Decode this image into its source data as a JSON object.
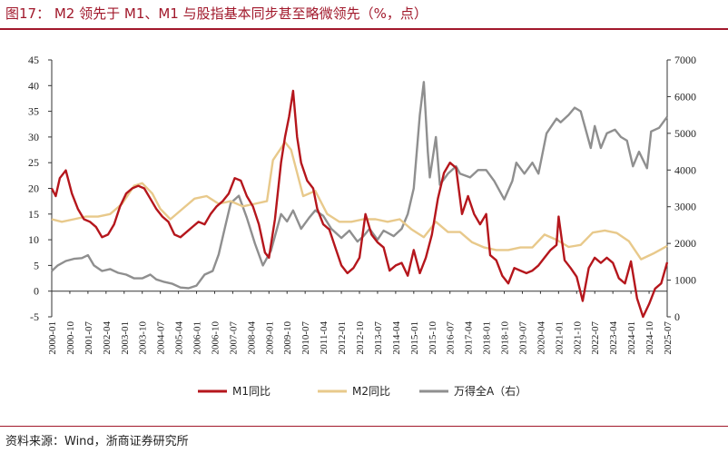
{
  "title": "图17： M2 领先于 M1、M1 与股指基本同步甚至略微领先（%，点）",
  "source": "资料来源：Wind，浙商证券研究所",
  "chart_data": {
    "type": "line",
    "x_ticks": [
      "2000-01",
      "2000-10",
      "2001-07",
      "2002-04",
      "2003-01",
      "2003-10",
      "2004-07",
      "2005-04",
      "2006-01",
      "2006-10",
      "2007-07",
      "2008-04",
      "2009-01",
      "2009-10",
      "2010-07",
      "2011-04",
      "2012-01",
      "2012-10",
      "2013-07",
      "2014-04",
      "2015-01",
      "2015-10",
      "2016-07",
      "2017-04",
      "2018-01",
      "2018-10",
      "2019-07",
      "2020-04",
      "2021-01",
      "2021-10",
      "2022-07",
      "2023-04",
      "2024-01",
      "2024-10",
      "2025-07"
    ],
    "x_range": [
      "2000-01",
      "2025-07"
    ],
    "y_left": {
      "ticks": [
        "45",
        "40",
        "35",
        "30",
        "25",
        "20",
        "15",
        "10",
        "5",
        "0",
        "-5"
      ],
      "ylim": [
        -5,
        45
      ]
    },
    "y_right": {
      "ticks": [
        "7000",
        "6000",
        "5000",
        "4000",
        "3000",
        "2000",
        "1000",
        "0"
      ],
      "ylim": [
        0,
        7000
      ]
    },
    "legend": {
      "position": "bottom"
    },
    "series": [
      {
        "name": "M1同比",
        "axis": "left",
        "color": "#b5161c",
        "points": [
          [
            "2000-01",
            20
          ],
          [
            "2000-03",
            18.5
          ],
          [
            "2000-05",
            22
          ],
          [
            "2000-08",
            23.5
          ],
          [
            "2000-11",
            19
          ],
          [
            "2001-02",
            16
          ],
          [
            "2001-05",
            14
          ],
          [
            "2001-08",
            13.5
          ],
          [
            "2001-11",
            12.5
          ],
          [
            "2002-02",
            10.5
          ],
          [
            "2002-05",
            11
          ],
          [
            "2002-08",
            13
          ],
          [
            "2002-11",
            16.5
          ],
          [
            "2003-02",
            19
          ],
          [
            "2003-05",
            20
          ],
          [
            "2003-08",
            20.5
          ],
          [
            "2003-11",
            20
          ],
          [
            "2004-02",
            18
          ],
          [
            "2004-05",
            16
          ],
          [
            "2004-08",
            14.5
          ],
          [
            "2004-11",
            13.5
          ],
          [
            "2005-02",
            11
          ],
          [
            "2005-05",
            10.5
          ],
          [
            "2005-08",
            11.5
          ],
          [
            "2005-11",
            12.5
          ],
          [
            "2006-02",
            13.5
          ],
          [
            "2006-05",
            13
          ],
          [
            "2006-08",
            15
          ],
          [
            "2006-11",
            16.5
          ],
          [
            "2007-02",
            17.5
          ],
          [
            "2007-05",
            19
          ],
          [
            "2007-08",
            22
          ],
          [
            "2007-11",
            21.5
          ],
          [
            "2008-02",
            18.5
          ],
          [
            "2008-05",
            16.5
          ],
          [
            "2008-08",
            13
          ],
          [
            "2008-11",
            7.5
          ],
          [
            "2009-01",
            6.5
          ],
          [
            "2009-04",
            14
          ],
          [
            "2009-07",
            25
          ],
          [
            "2009-09",
            30
          ],
          [
            "2009-11",
            34
          ],
          [
            "2010-01",
            39
          ],
          [
            "2010-03",
            30
          ],
          [
            "2010-05",
            25
          ],
          [
            "2010-08",
            21.5
          ],
          [
            "2010-11",
            20
          ],
          [
            "2011-01",
            16
          ],
          [
            "2011-04",
            13
          ],
          [
            "2011-07",
            12
          ],
          [
            "2011-10",
            8.5
          ],
          [
            "2012-01",
            5
          ],
          [
            "2012-04",
            3.5
          ],
          [
            "2012-07",
            4.5
          ],
          [
            "2012-10",
            6.5
          ],
          [
            "2013-01",
            15
          ],
          [
            "2013-04",
            11
          ],
          [
            "2013-07",
            9.5
          ],
          [
            "2013-10",
            8.5
          ],
          [
            "2014-01",
            4
          ],
          [
            "2014-04",
            5
          ],
          [
            "2014-07",
            5.5
          ],
          [
            "2014-10",
            3
          ],
          [
            "2015-01",
            8
          ],
          [
            "2015-04",
            3.5
          ],
          [
            "2015-07",
            6.5
          ],
          [
            "2015-10",
            11
          ],
          [
            "2016-01",
            18
          ],
          [
            "2016-04",
            23
          ],
          [
            "2016-07",
            25
          ],
          [
            "2016-10",
            24
          ],
          [
            "2017-01",
            15
          ],
          [
            "2017-04",
            18.5
          ],
          [
            "2017-07",
            15
          ],
          [
            "2017-10",
            13
          ],
          [
            "2018-01",
            15
          ],
          [
            "2018-03",
            7
          ],
          [
            "2018-06",
            6
          ],
          [
            "2018-09",
            3
          ],
          [
            "2018-12",
            1.5
          ],
          [
            "2019-03",
            4.5
          ],
          [
            "2019-06",
            4
          ],
          [
            "2019-09",
            3.5
          ],
          [
            "2019-12",
            4
          ],
          [
            "2020-03",
            5
          ],
          [
            "2020-06",
            6.5
          ],
          [
            "2020-09",
            8
          ],
          [
            "2020-12",
            9
          ],
          [
            "2021-01",
            14.5
          ],
          [
            "2021-04",
            6
          ],
          [
            "2021-07",
            4.5
          ],
          [
            "2021-10",
            2.8
          ],
          [
            "2022-01",
            -1.9
          ],
          [
            "2022-04",
            4.5
          ],
          [
            "2022-07",
            6.5
          ],
          [
            "2022-10",
            5.5
          ],
          [
            "2023-01",
            6.5
          ],
          [
            "2023-04",
            5.5
          ],
          [
            "2023-07",
            2.5
          ],
          [
            "2023-10",
            1.5
          ],
          [
            "2024-01",
            5.8
          ],
          [
            "2024-04",
            -1.4
          ],
          [
            "2024-07",
            -5
          ],
          [
            "2024-10",
            -2.5
          ],
          [
            "2025-01",
            0.5
          ],
          [
            "2025-04",
            1.5
          ],
          [
            "2025-07",
            5.6
          ]
        ]
      },
      {
        "name": "M2同比",
        "axis": "left",
        "color": "#e8c98b",
        "points": [
          [
            "2000-01",
            14
          ],
          [
            "2000-06",
            13.5
          ],
          [
            "2000-12",
            14
          ],
          [
            "2001-06",
            14.5
          ],
          [
            "2001-12",
            14.5
          ],
          [
            "2002-06",
            15
          ],
          [
            "2002-12",
            17
          ],
          [
            "2003-06",
            20.5
          ],
          [
            "2003-10",
            21
          ],
          [
            "2004-03",
            19
          ],
          [
            "2004-07",
            16
          ],
          [
            "2004-12",
            14
          ],
          [
            "2005-06",
            16
          ],
          [
            "2005-12",
            18
          ],
          [
            "2006-06",
            18.5
          ],
          [
            "2006-12",
            17
          ],
          [
            "2007-06",
            17.5
          ],
          [
            "2007-12",
            16.5
          ],
          [
            "2008-06",
            17
          ],
          [
            "2008-12",
            17.5
          ],
          [
            "2009-03",
            25.5
          ],
          [
            "2009-09",
            29
          ],
          [
            "2009-12",
            27.5
          ],
          [
            "2010-06",
            18.5
          ],
          [
            "2010-12",
            19.5
          ],
          [
            "2011-06",
            15
          ],
          [
            "2011-12",
            13.5
          ],
          [
            "2012-06",
            13.5
          ],
          [
            "2012-12",
            14
          ],
          [
            "2013-06",
            14
          ],
          [
            "2013-12",
            13.5
          ],
          [
            "2014-06",
            14
          ],
          [
            "2014-12",
            12
          ],
          [
            "2015-06",
            10.5
          ],
          [
            "2015-12",
            13.5
          ],
          [
            "2016-06",
            11.5
          ],
          [
            "2016-12",
            11.5
          ],
          [
            "2017-06",
            9.5
          ],
          [
            "2017-12",
            8.5
          ],
          [
            "2018-06",
            8
          ],
          [
            "2018-12",
            8
          ],
          [
            "2019-06",
            8.5
          ],
          [
            "2019-12",
            8.5
          ],
          [
            "2020-06",
            11
          ],
          [
            "2020-12",
            10
          ],
          [
            "2021-06",
            8.6
          ],
          [
            "2021-12",
            9
          ],
          [
            "2022-06",
            11.4
          ],
          [
            "2022-12",
            11.8
          ],
          [
            "2023-06",
            11.3
          ],
          [
            "2023-12",
            9.7
          ],
          [
            "2024-06",
            6.2
          ],
          [
            "2024-12",
            7.3
          ],
          [
            "2025-07",
            8.8
          ]
        ]
      },
      {
        "name": "万得全A（右）",
        "axis": "right",
        "color": "#8f8f8f",
        "points": [
          [
            "2000-01",
            1250
          ],
          [
            "2000-04",
            1400
          ],
          [
            "2000-08",
            1520
          ],
          [
            "2000-12",
            1580
          ],
          [
            "2001-04",
            1600
          ],
          [
            "2001-07",
            1680
          ],
          [
            "2001-10",
            1400
          ],
          [
            "2002-02",
            1250
          ],
          [
            "2002-06",
            1300
          ],
          [
            "2002-10",
            1200
          ],
          [
            "2003-02",
            1150
          ],
          [
            "2003-06",
            1050
          ],
          [
            "2003-10",
            1050
          ],
          [
            "2004-02",
            1150
          ],
          [
            "2004-05",
            1020
          ],
          [
            "2004-09",
            950
          ],
          [
            "2005-01",
            900
          ],
          [
            "2005-05",
            800
          ],
          [
            "2005-09",
            780
          ],
          [
            "2006-01",
            850
          ],
          [
            "2006-05",
            1150
          ],
          [
            "2006-09",
            1250
          ],
          [
            "2006-12",
            1700
          ],
          [
            "2007-03",
            2400
          ],
          [
            "2007-06",
            3100
          ],
          [
            "2007-10",
            3300
          ],
          [
            "2008-02",
            2700
          ],
          [
            "2008-06",
            2000
          ],
          [
            "2008-10",
            1400
          ],
          [
            "2009-02",
            1800
          ],
          [
            "2009-07",
            2800
          ],
          [
            "2009-10",
            2600
          ],
          [
            "2010-01",
            2900
          ],
          [
            "2010-05",
            2400
          ],
          [
            "2010-09",
            2700
          ],
          [
            "2010-12",
            2900
          ],
          [
            "2011-04",
            2750
          ],
          [
            "2011-08",
            2400
          ],
          [
            "2012-01",
            2150
          ],
          [
            "2012-05",
            2350
          ],
          [
            "2012-09",
            2050
          ],
          [
            "2012-12",
            2200
          ],
          [
            "2013-03",
            2400
          ],
          [
            "2013-07",
            2100
          ],
          [
            "2013-10",
            2350
          ],
          [
            "2014-03",
            2200
          ],
          [
            "2014-07",
            2400
          ],
          [
            "2014-10",
            2800
          ],
          [
            "2015-01",
            3500
          ],
          [
            "2015-04",
            5500
          ],
          [
            "2015-06",
            6400
          ],
          [
            "2015-08",
            4500
          ],
          [
            "2015-09",
            3800
          ],
          [
            "2015-12",
            4900
          ],
          [
            "2016-02",
            3600
          ],
          [
            "2016-06",
            3900
          ],
          [
            "2016-10",
            4100
          ],
          [
            "2016-12",
            3900
          ],
          [
            "2017-05",
            3800
          ],
          [
            "2017-09",
            4000
          ],
          [
            "2018-01",
            4000
          ],
          [
            "2018-05",
            3700
          ],
          [
            "2018-10",
            3200
          ],
          [
            "2019-02",
            3700
          ],
          [
            "2019-04",
            4200
          ],
          [
            "2019-08",
            3900
          ],
          [
            "2019-12",
            4200
          ],
          [
            "2020-03",
            3900
          ],
          [
            "2020-07",
            5000
          ],
          [
            "2020-12",
            5400
          ],
          [
            "2021-02",
            5300
          ],
          [
            "2021-06",
            5500
          ],
          [
            "2021-09",
            5700
          ],
          [
            "2021-12",
            5600
          ],
          [
            "2022-03",
            5000
          ],
          [
            "2022-05",
            4600
          ],
          [
            "2022-07",
            5200
          ],
          [
            "2022-10",
            4600
          ],
          [
            "2023-01",
            5000
          ],
          [
            "2023-05",
            5100
          ],
          [
            "2023-08",
            4900
          ],
          [
            "2023-11",
            4800
          ],
          [
            "2024-02",
            4100
          ],
          [
            "2024-05",
            4500
          ],
          [
            "2024-09",
            4050
          ],
          [
            "2024-11",
            5050
          ],
          [
            "2025-03",
            5150
          ],
          [
            "2025-07",
            5450
          ]
        ]
      }
    ]
  }
}
